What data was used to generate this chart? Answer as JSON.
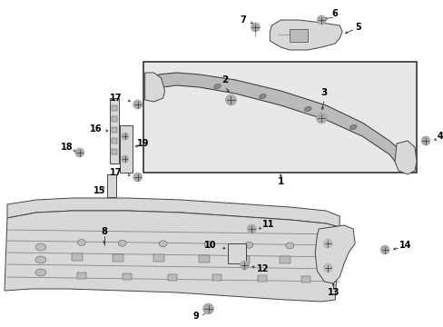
{
  "fig_width": 4.89,
  "fig_height": 3.6,
  "dpi": 100,
  "bg": "#ffffff",
  "gray_light": "#d8d8d8",
  "gray_mid": "#bbbbbb",
  "gray_dark": "#888888",
  "edge": "#444444",
  "line": "#333333",
  "text": "#000000",
  "inset_bg": "#e8e8e8",
  "label_fs": 7.5,
  "label_fs_small": 7.0
}
